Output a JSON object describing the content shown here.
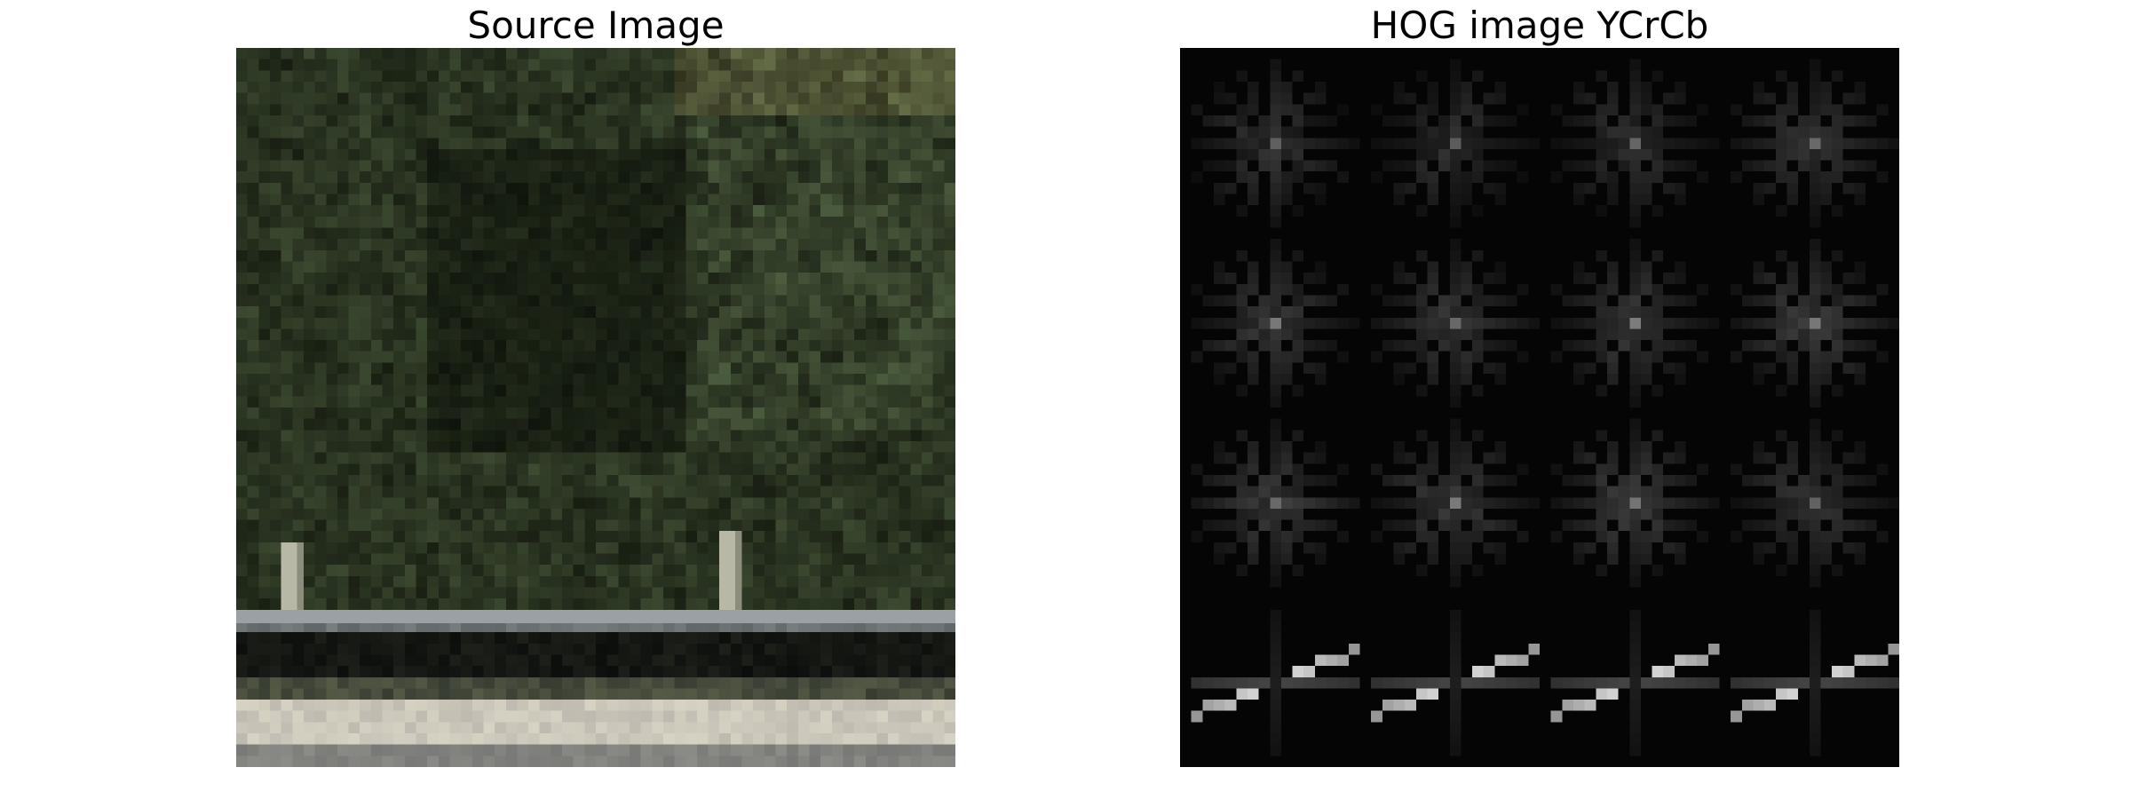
{
  "figure": {
    "left_title": "Source Image",
    "right_title": "HOG image YCrCb"
  },
  "colors": {
    "background": "#ffffff",
    "hog_background": "#050505",
    "foliage_dark": "#141a12",
    "foliage_mid": "#2d3a26",
    "foliage_light": "#4f5a3a",
    "guardrail": "#7a7f80",
    "road": "#c9c6bd"
  }
}
